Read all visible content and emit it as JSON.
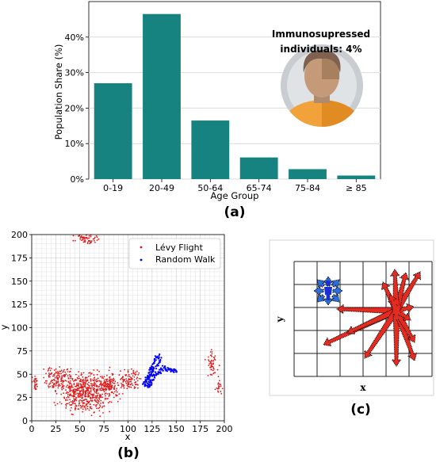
{
  "chart_data": [
    {
      "type": "bar",
      "panel_label": "(a)",
      "categories": [
        "0-19",
        "20-49",
        "50-64",
        "65-74",
        "75-84",
        "≥ 85"
      ],
      "values": [
        27.0,
        46.5,
        16.5,
        6.1,
        2.8,
        1.0
      ],
      "xlabel": "Age Group",
      "ylabel": "Population Share (%)",
      "ylim": [
        0,
        50
      ],
      "yticks": [
        "0%",
        "10%",
        "20%",
        "30%",
        "40%"
      ],
      "grid": true,
      "bar_color": "#168380",
      "annotation": [
        "Immunosupressed",
        "individuals: 4%"
      ]
    },
    {
      "type": "scatter",
      "panel_label": "(b)",
      "xlabel": "x",
      "ylabel": "y",
      "xlim": [
        0,
        200
      ],
      "ylim": [
        0,
        200
      ],
      "xticks": [
        "0",
        "25",
        "50",
        "75",
        "100",
        "125",
        "150",
        "175",
        "200"
      ],
      "yticks": [
        "0",
        "25",
        "50",
        "75",
        "100",
        "125",
        "150",
        "175",
        "200"
      ],
      "grid": true,
      "legend_position": "top-right",
      "series": [
        {
          "name": "Lévy Flight",
          "color": "#e41a1c",
          "clusters": [
            {
              "cx": 55,
              "cy": 30,
              "rx": 22,
              "ry": 18,
              "n": 520
            },
            {
              "cx": 28,
              "cy": 45,
              "rx": 14,
              "ry": 12,
              "n": 130
            },
            {
              "cx": 80,
              "cy": 38,
              "rx": 14,
              "ry": 12,
              "n": 150
            },
            {
              "cx": 103,
              "cy": 45,
              "rx": 9,
              "ry": 9,
              "n": 90
            },
            {
              "cx": 4,
              "cy": 40,
              "rx": 3,
              "ry": 7,
              "n": 25
            },
            {
              "cx": 55,
              "cy": 195,
              "rx": 12,
              "ry": 5,
              "n": 60
            },
            {
              "cx": 187,
              "cy": 62,
              "rx": 5,
              "ry": 14,
              "n": 50
            },
            {
              "cx": 195,
              "cy": 35,
              "rx": 3,
              "ry": 8,
              "n": 20
            }
          ]
        },
        {
          "name": "Random Walk",
          "color": "#0000ff",
          "path": [
            [
              123,
              55
            ],
            [
              127,
              57
            ],
            [
              131,
              60
            ],
            [
              134,
              65
            ],
            [
              132,
              70
            ],
            [
              128,
              68
            ],
            [
              127,
              62
            ],
            [
              124,
              58
            ],
            [
              122,
              52
            ],
            [
              120,
              47
            ],
            [
              118,
              43
            ],
            [
              119,
              38
            ],
            [
              122,
              41
            ],
            [
              126,
              44
            ],
            [
              130,
              50
            ],
            [
              134,
              55
            ],
            [
              138,
              58
            ],
            [
              143,
              56
            ],
            [
              147,
              55
            ],
            [
              150,
              53
            ],
            [
              146,
              53
            ],
            [
              140,
              55
            ],
            [
              134,
              53
            ],
            [
              128,
              50
            ],
            [
              123,
              48
            ],
            [
              119,
              44
            ],
            [
              116,
              40
            ],
            [
              120,
              36
            ],
            [
              124,
              38
            ],
            [
              122,
              43
            ],
            [
              124,
              50
            ],
            [
              127,
              54
            ]
          ]
        }
      ]
    },
    {
      "type": "diagram",
      "panel_label": "(c)",
      "xlabel": "x",
      "ylabel": "y"
    }
  ]
}
